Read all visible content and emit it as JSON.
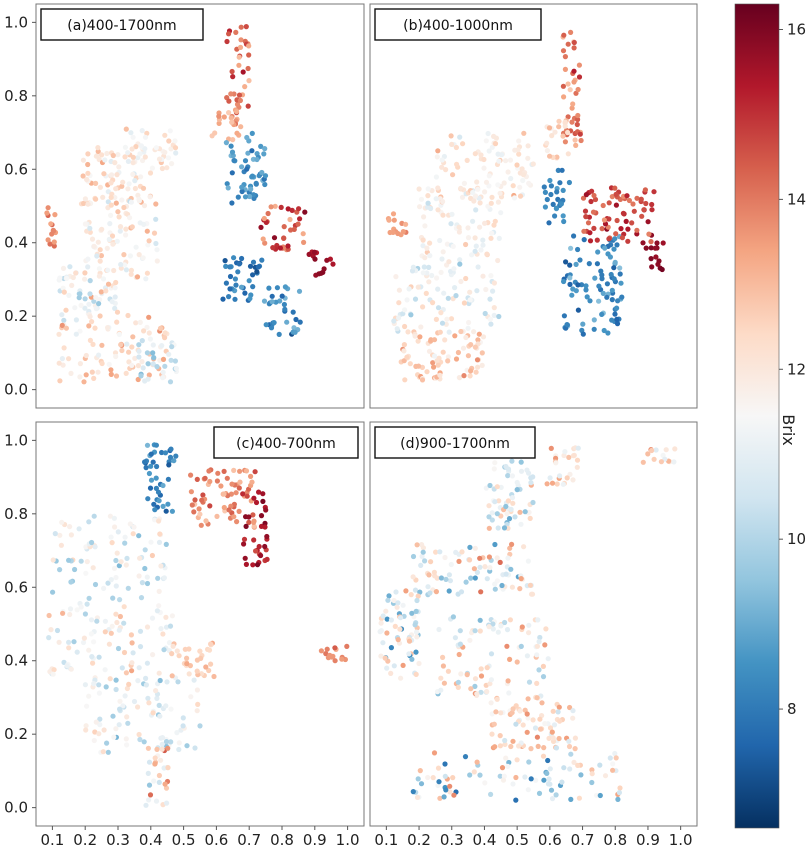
{
  "chart_data": {
    "type": "scatter",
    "layout": "2x2 grid sharing x and y axes",
    "xlim": [
      0.05,
      1.05
    ],
    "ylim": [
      -0.05,
      1.05
    ],
    "x_ticks": [
      "0.1",
      "0.2",
      "0.3",
      "0.4",
      "0.5",
      "0.6",
      "0.7",
      "0.8",
      "0.9",
      "1.0"
    ],
    "y_ticks": [
      "0.0",
      "0.2",
      "0.4",
      "0.6",
      "0.8",
      "1.0"
    ],
    "colorbar": {
      "label": "Brix",
      "range": [
        6.6,
        16.3
      ],
      "ticks": [
        "8",
        "10",
        "12",
        "14",
        "16"
      ],
      "colormap": "RdBu_r",
      "colors": [
        "#053061",
        "#2166ac",
        "#4393c3",
        "#92c5de",
        "#d1e5f0",
        "#f7f7f7",
        "#fddbc7",
        "#f4a582",
        "#d6604d",
        "#b2182b",
        "#67001f"
      ]
    },
    "panels": [
      {
        "label": "(a)400-1700nm",
        "clusters": [
          {
            "x": [
              0.63,
              0.7
            ],
            "y": [
              0.72,
              0.99
            ],
            "brix": [
              12.5,
              15.5
            ]
          },
          {
            "x": [
              0.58,
              0.68
            ],
            "y": [
              0.68,
              0.76
            ],
            "brix": [
              12.5,
              13.8
            ]
          },
          {
            "x": [
              0.08,
              0.11
            ],
            "y": [
              0.38,
              0.5
            ],
            "brix": [
              13.0,
              14.5
            ]
          },
          {
            "x": [
              0.18,
              0.4
            ],
            "y": [
              0.5,
              0.66
            ],
            "brix": [
              10.5,
              13.5
            ]
          },
          {
            "x": [
              0.32,
              0.48
            ],
            "y": [
              0.6,
              0.71
            ],
            "brix": [
              10.5,
              13.0
            ]
          },
          {
            "x": [
              0.2,
              0.42
            ],
            "y": [
              0.3,
              0.52
            ],
            "brix": [
              10.0,
              13.5
            ]
          },
          {
            "x": [
              0.12,
              0.3
            ],
            "y": [
              0.18,
              0.34
            ],
            "brix": [
              9.0,
              13.5
            ]
          },
          {
            "x": [
              0.12,
              0.45
            ],
            "y": [
              0.02,
              0.22
            ],
            "brix": [
              10.5,
              14.0
            ]
          },
          {
            "x": [
              0.36,
              0.48
            ],
            "y": [
              0.02,
              0.14
            ],
            "brix": [
              9.0,
              12.0
            ]
          },
          {
            "x": [
              0.63,
              0.75
            ],
            "y": [
              0.5,
              0.7
            ],
            "brix": [
              7.5,
              9.5
            ]
          },
          {
            "x": [
              0.73,
              0.87
            ],
            "y": [
              0.38,
              0.5
            ],
            "brix": [
              13.0,
              16.0
            ]
          },
          {
            "x": [
              0.88,
              0.96
            ],
            "y": [
              0.3,
              0.38
            ],
            "brix": [
              15.0,
              16.2
            ]
          },
          {
            "x": [
              0.62,
              0.74
            ],
            "y": [
              0.22,
              0.36
            ],
            "brix": [
              7.0,
              9.0
            ]
          },
          {
            "x": [
              0.74,
              0.86
            ],
            "y": [
              0.15,
              0.28
            ],
            "brix": [
              7.0,
              9.5
            ]
          }
        ]
      },
      {
        "label": "(b)400-1000nm",
        "clusters": [
          {
            "x": [
              0.64,
              0.7
            ],
            "y": [
              0.66,
              0.98
            ],
            "brix": [
              12.5,
              15.5
            ]
          },
          {
            "x": [
              0.58,
              0.66
            ],
            "y": [
              0.62,
              0.74
            ],
            "brix": [
              11.5,
              13.5
            ]
          },
          {
            "x": [
              0.1,
              0.16
            ],
            "y": [
              0.42,
              0.48
            ],
            "brix": [
              13.0,
              14.0
            ]
          },
          {
            "x": [
              0.25,
              0.55
            ],
            "y": [
              0.52,
              0.7
            ],
            "brix": [
              10.5,
              13.5
            ]
          },
          {
            "x": [
              0.2,
              0.45
            ],
            "y": [
              0.35,
              0.55
            ],
            "brix": [
              10.0,
              13.0
            ]
          },
          {
            "x": [
              0.12,
              0.45
            ],
            "y": [
              0.15,
              0.35
            ],
            "brix": [
              9.5,
              13.0
            ]
          },
          {
            "x": [
              0.14,
              0.4
            ],
            "y": [
              0.02,
              0.16
            ],
            "brix": [
              11.0,
              14.0
            ]
          },
          {
            "x": [
              0.58,
              0.66
            ],
            "y": [
              0.45,
              0.6
            ],
            "brix": [
              7.5,
              9.0
            ]
          },
          {
            "x": [
              0.64,
              0.82
            ],
            "y": [
              0.15,
              0.42
            ],
            "brix": [
              7.0,
              9.5
            ]
          },
          {
            "x": [
              0.7,
              0.92
            ],
            "y": [
              0.4,
              0.55
            ],
            "brix": [
              13.5,
              16.0
            ]
          },
          {
            "x": [
              0.88,
              0.96
            ],
            "y": [
              0.32,
              0.4
            ],
            "brix": [
              15.5,
              16.2
            ]
          }
        ]
      },
      {
        "label": "(c)400-700nm",
        "clusters": [
          {
            "x": [
              0.38,
              0.48
            ],
            "y": [
              0.8,
              0.99
            ],
            "brix": [
              7.0,
              9.5
            ]
          },
          {
            "x": [
              0.52,
              0.72
            ],
            "y": [
              0.76,
              0.92
            ],
            "brix": [
              12.5,
              15.0
            ]
          },
          {
            "x": [
              0.68,
              0.76
            ],
            "y": [
              0.66,
              0.86
            ],
            "brix": [
              14.5,
              16.2
            ]
          },
          {
            "x": [
              0.1,
              0.45
            ],
            "y": [
              0.55,
              0.8
            ],
            "brix": [
              9.0,
              13.0
            ]
          },
          {
            "x": [
              0.08,
              0.48
            ],
            "y": [
              0.35,
              0.55
            ],
            "brix": [
              9.5,
              13.5
            ]
          },
          {
            "x": [
              0.45,
              0.6
            ],
            "y": [
              0.35,
              0.45
            ],
            "brix": [
              12.0,
              13.5
            ]
          },
          {
            "x": [
              0.2,
              0.55
            ],
            "y": [
              0.15,
              0.35
            ],
            "brix": [
              9.0,
              13.0
            ]
          },
          {
            "x": [
              0.38,
              0.46
            ],
            "y": [
              0.0,
              0.18
            ],
            "brix": [
              9.0,
              14.5
            ]
          },
          {
            "x": [
              0.92,
              1.0
            ],
            "y": [
              0.4,
              0.44
            ],
            "brix": [
              13.0,
              14.5
            ]
          }
        ]
      },
      {
        "label": "(d)900-1700nm",
        "clusters": [
          {
            "x": [
              0.88,
              0.99
            ],
            "y": [
              0.94,
              0.98
            ],
            "brix": [
              9.0,
              15.5
            ]
          },
          {
            "x": [
              0.58,
              0.7
            ],
            "y": [
              0.88,
              0.98
            ],
            "brix": [
              10.0,
              14.0
            ]
          },
          {
            "x": [
              0.4,
              0.55
            ],
            "y": [
              0.76,
              0.95
            ],
            "brix": [
              8.5,
              13.5
            ]
          },
          {
            "x": [
              0.18,
              0.55
            ],
            "y": [
              0.58,
              0.72
            ],
            "brix": [
              8.5,
              14.5
            ]
          },
          {
            "x": [
              0.08,
              0.2
            ],
            "y": [
              0.35,
              0.6
            ],
            "brix": [
              8.0,
              14.0
            ]
          },
          {
            "x": [
              0.25,
              0.6
            ],
            "y": [
              0.3,
              0.52
            ],
            "brix": [
              9.0,
              14.0
            ]
          },
          {
            "x": [
              0.42,
              0.68
            ],
            "y": [
              0.16,
              0.3
            ],
            "brix": [
              10.0,
              14.0
            ]
          },
          {
            "x": [
              0.18,
              0.82
            ],
            "y": [
              0.02,
              0.15
            ],
            "brix": [
              7.0,
              15.0
            ]
          }
        ]
      }
    ]
  }
}
